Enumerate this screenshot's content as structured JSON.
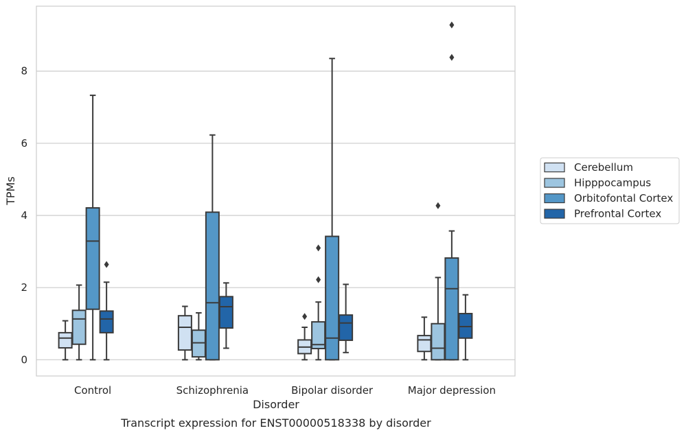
{
  "chart_data": {
    "type": "box",
    "caption": "Transcript expression for ENST00000518338 by disorder",
    "xlabel": "Disorder",
    "ylabel": "TPMs",
    "ylim": [
      -0.45,
      9.8
    ],
    "yticks": [
      0,
      2,
      4,
      6,
      8
    ],
    "grid": "horizontal",
    "legend_position": "right",
    "categories": [
      "Control",
      "Schizophrenia",
      "Bipolar disorder",
      "Major depression"
    ],
    "series": [
      {
        "name": "Cerebellum",
        "color": "#d0e1f2",
        "boxes": [
          {
            "whislo": 0.0,
            "q1": 0.33,
            "med": 0.6,
            "q3": 0.75,
            "whishi": 1.08,
            "fliers": []
          },
          {
            "whislo": 0.0,
            "q1": 0.27,
            "med": 0.9,
            "q3": 1.22,
            "whishi": 1.48,
            "fliers": []
          },
          {
            "whislo": 0.0,
            "q1": 0.17,
            "med": 0.35,
            "q3": 0.55,
            "whishi": 0.9,
            "fliers": [
              1.2
            ]
          },
          {
            "whislo": 0.0,
            "q1": 0.23,
            "med": 0.55,
            "q3": 0.67,
            "whishi": 1.18,
            "fliers": []
          }
        ]
      },
      {
        "name": "Hipppocampus",
        "color": "#9dc5e0",
        "boxes": [
          {
            "whislo": 0.0,
            "q1": 0.43,
            "med": 1.13,
            "q3": 1.37,
            "whishi": 2.07,
            "fliers": []
          },
          {
            "whislo": 0.0,
            "q1": 0.08,
            "med": 0.47,
            "q3": 0.82,
            "whishi": 1.3,
            "fliers": []
          },
          {
            "whislo": 0.0,
            "q1": 0.31,
            "med": 0.42,
            "q3": 1.05,
            "whishi": 1.6,
            "fliers": [
              2.22,
              3.1
            ]
          },
          {
            "whislo": 0.0,
            "q1": 0.0,
            "med": 0.32,
            "q3": 1.0,
            "whishi": 2.28,
            "fliers": [
              4.27
            ]
          }
        ]
      },
      {
        "name": "Orbitofontal Cortex",
        "color": "#5497c7",
        "boxes": [
          {
            "whislo": 0.0,
            "q1": 1.4,
            "med": 3.29,
            "q3": 4.21,
            "whishi": 7.33,
            "fliers": []
          },
          {
            "whislo": 0.0,
            "q1": 0.0,
            "med": 1.58,
            "q3": 4.09,
            "whishi": 6.23,
            "fliers": []
          },
          {
            "whislo": 0.0,
            "q1": 0.0,
            "med": 0.6,
            "q3": 3.42,
            "whishi": 8.35,
            "fliers": []
          },
          {
            "whislo": 0.0,
            "q1": 0.0,
            "med": 1.97,
            "q3": 2.82,
            "whishi": 3.57,
            "fliers": [
              8.38,
              9.28
            ]
          }
        ]
      },
      {
        "name": "Prefrontal Cortex",
        "color": "#2265a8",
        "boxes": [
          {
            "whislo": 0.0,
            "q1": 0.75,
            "med": 1.13,
            "q3": 1.35,
            "whishi": 2.15,
            "fliers": [
              2.64
            ]
          },
          {
            "whislo": 0.32,
            "q1": 0.88,
            "med": 1.47,
            "q3": 1.75,
            "whishi": 2.13,
            "fliers": []
          },
          {
            "whislo": 0.2,
            "q1": 0.54,
            "med": 1.02,
            "q3": 1.24,
            "whishi": 2.09,
            "fliers": []
          },
          {
            "whislo": 0.0,
            "q1": 0.6,
            "med": 0.92,
            "q3": 1.28,
            "whishi": 1.8,
            "fliers": []
          }
        ]
      }
    ]
  }
}
